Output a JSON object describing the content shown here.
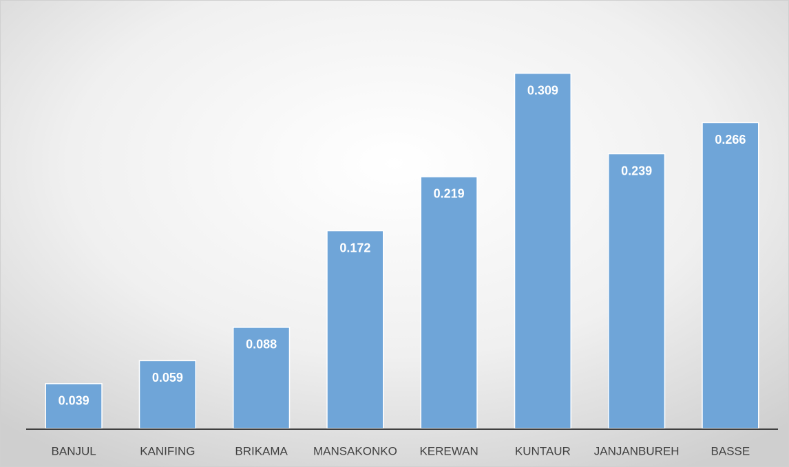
{
  "chart_data": {
    "type": "bar",
    "categories": [
      "BANJUL",
      "KANIFING",
      "BRIKAMA",
      "MANSAKONKO",
      "KEREWAN",
      "KUNTAUR",
      "JANJANBUREH",
      "BASSE"
    ],
    "values": [
      0.039,
      0.059,
      0.088,
      0.172,
      0.219,
      0.309,
      0.239,
      0.266
    ],
    "color": "#6fa5d8",
    "ylim": [
      0,
      0.35
    ]
  }
}
